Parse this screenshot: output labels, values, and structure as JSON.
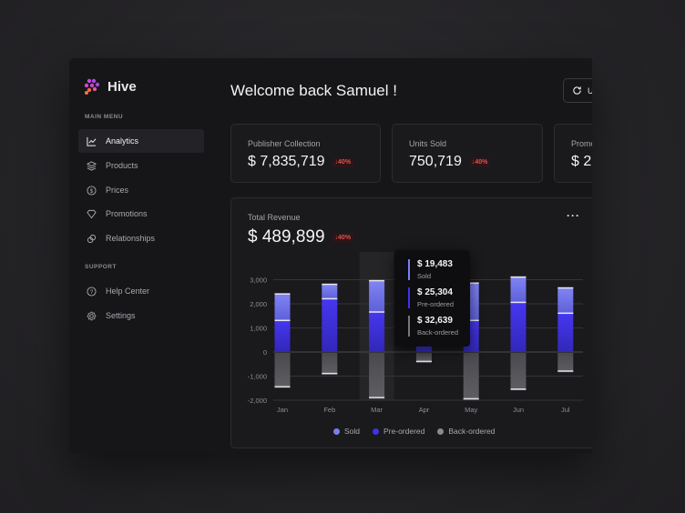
{
  "app": {
    "name": "Hive"
  },
  "sidebar": {
    "main_menu_label": "MAIN MENU",
    "items": [
      {
        "label": "Analytics",
        "icon": "chart-line-icon"
      },
      {
        "label": "Products",
        "icon": "layers-icon"
      },
      {
        "label": "Prices",
        "icon": "dollar-circle-icon"
      },
      {
        "label": "Promotions",
        "icon": "diamond-icon"
      },
      {
        "label": "Relationships",
        "icon": "link-icon"
      }
    ],
    "support_label": "SUPPORT",
    "support_items": [
      {
        "label": "Help Center",
        "icon": "help-icon"
      },
      {
        "label": "Settings",
        "icon": "gear-icon"
      }
    ]
  },
  "header": {
    "title": "Welcome back Samuel !",
    "update_label": "U"
  },
  "cards": [
    {
      "label": "Publisher Collection",
      "value": "$ 7,835,719",
      "change": "40%"
    },
    {
      "label": "Units Sold",
      "value": "750,719",
      "change": "40%"
    },
    {
      "label": "Promo",
      "value": "$ 2,"
    }
  ],
  "revenue": {
    "label": "Total Revenue",
    "value": "$ 489,899",
    "change": "40%"
  },
  "tooltip": [
    {
      "value": "$ 19,483",
      "label": "Sold"
    },
    {
      "value": "$ 25,304",
      "label": "Pre-ordered"
    },
    {
      "value": "$ 32,639",
      "label": "Back-ordered"
    }
  ],
  "colors": {
    "sold": "#7b7ef0",
    "preordered": "#3f33e6",
    "backordered": "#58575c",
    "badge": "#e0504f"
  },
  "chart_data": {
    "type": "bar",
    "stacked": true,
    "categories": [
      "Jan",
      "Feb",
      "Mar",
      "Apr",
      "May",
      "Jun",
      "Jul"
    ],
    "series": [
      {
        "name": "Pre-ordered",
        "values": [
          1300,
          2200,
          1650,
          300,
          1300,
          2050,
          1600
        ]
      },
      {
        "name": "Sold",
        "values": [
          1100,
          600,
          1300,
          300,
          1550,
          1050,
          1050
        ]
      },
      {
        "name": "Back-ordered",
        "values": [
          -1450,
          -900,
          -1900,
          -400,
          -1950,
          -1550,
          -800
        ]
      }
    ],
    "yticks": [
      "3,000",
      "2,000",
      "1,000",
      "0",
      "-1,000",
      "-2,000"
    ],
    "ylim": [
      -2000,
      3000
    ],
    "legend": [
      "Sold",
      "Pre-ordered",
      "Back-ordered"
    ],
    "legend_position": "bottom",
    "highlighted": "Mar"
  }
}
